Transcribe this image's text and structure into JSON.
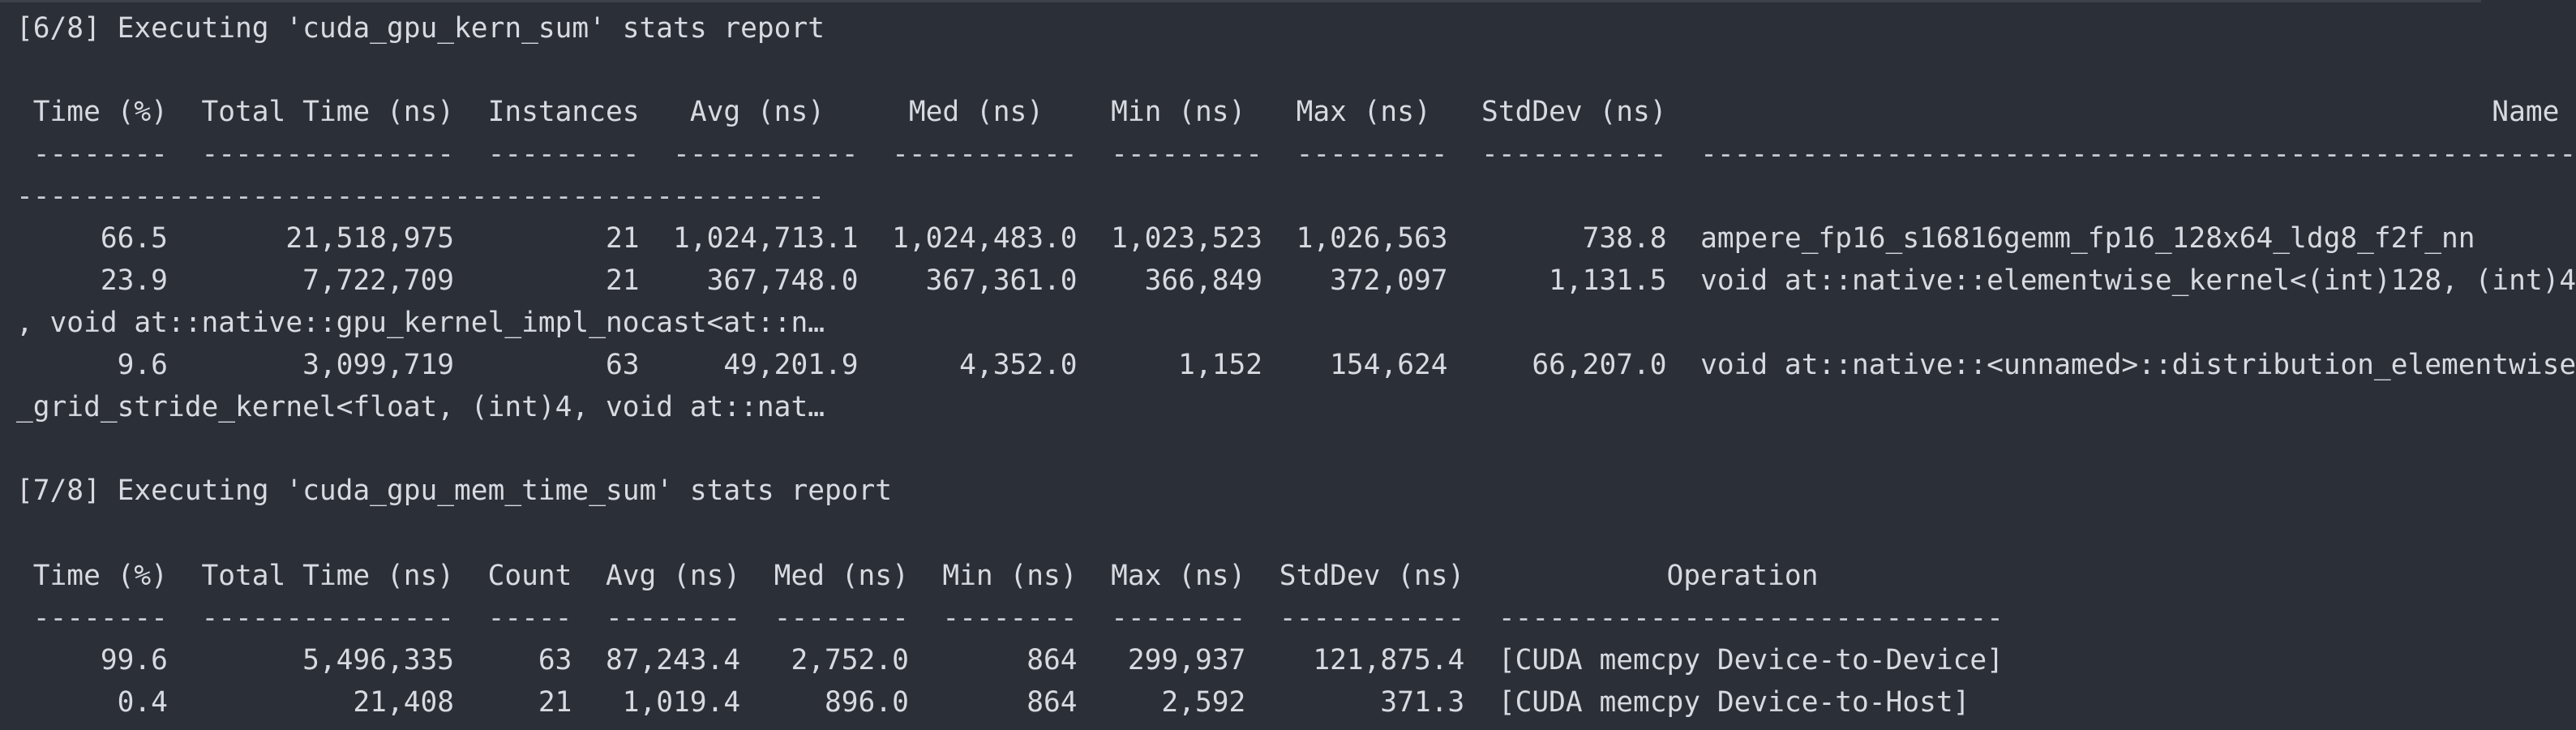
{
  "terminal": {
    "lines": [
      "[6/8] Executing 'cuda_gpu_kern_sum' stats report",
      " Time (%)  Total Time (ns)  Instances   Avg (ns)     Med (ns)    Min (ns)   Max (ns)   StdDev (ns)                                                 Name",
      " --------  ---------------  ---------  -----------  -----------  ---------  ---------  -----------  ----------------------------------------------------------------------------------------------------",
      "     66.5       21,518,975         21  1,024,713.1  1,024,483.0  1,023,523  1,026,563        738.8  ampere_fp16_s16816gemm_fp16_128x64_ldg8_f2f_nn",
      "     23.9        7,722,709         21    367,748.0    367,361.0    366,849    372,097      1,131.5  void at::native::elementwise_kernel<(int)128, (int)4, void at::native::gpu_kernel_impl_nocast<at::n…",
      "      9.6        3,099,719         63     49,201.9      4,352.0      1,152    154,624     66,207.0  void at::native::<unnamed>::distribution_elementwise_grid_stride_kernel<float, (int)4, void at::nat…",
      "[7/8] Executing 'cuda_gpu_mem_time_sum' stats report",
      " Time (%)  Total Time (ns)  Count  Avg (ns)  Med (ns)  Min (ns)  Max (ns)  StdDev (ns)            Operation",
      " --------  ---------------  -----  --------  --------  --------  --------  -----------  ------------------------------",
      "     99.6        5,496,335     63  87,243.4   2,752.0       864   299,937    121,875.4  [CUDA memcpy Device-to-Device]",
      "      0.4           21,408     21   1,019.4     896.0       864     2,592        371.3  [CUDA memcpy Device-to-Host]"
    ]
  }
}
